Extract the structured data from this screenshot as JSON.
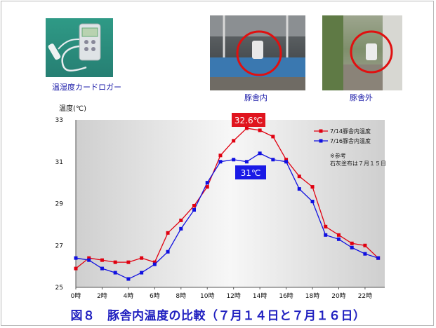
{
  "captions": {
    "logger": "温湿度カードロガー",
    "inside": "豚舎内",
    "outside": "豚舎外",
    "figure": "図８　豚舎内温度の比較（７月１４日と７月１６日）"
  },
  "colors": {
    "series_a": "#e00010",
    "series_b": "#1010e0",
    "callout_a_bg": "#e0141e",
    "callout_b_bg": "#1a1ae6",
    "caption_text": "#1a1aa8"
  },
  "photos": {
    "logger_icon": "temperature-humidity-logger-photo",
    "inside_icon": "pig-barn-interior-photo",
    "outside_icon": "pig-barn-exterior-photo"
  },
  "chart_data": {
    "type": "line",
    "ylabel": "温度(℃)",
    "ylim": [
      25,
      33
    ],
    "yticks": [
      25,
      27,
      29,
      31,
      33
    ],
    "xlim": [
      0,
      23.5
    ],
    "xticks": [
      0,
      2,
      4,
      6,
      8,
      10,
      12,
      14,
      16,
      18,
      20,
      22
    ],
    "xtick_labels": [
      "0時",
      "2時",
      "4時",
      "6時",
      "8時",
      "10時",
      "12時",
      "14時",
      "16時",
      "18時",
      "20時",
      "22時"
    ],
    "x": [
      0,
      1,
      2,
      3,
      4,
      5,
      6,
      7,
      8,
      9,
      10,
      11,
      12,
      13,
      14,
      15,
      16,
      17,
      18,
      19,
      20,
      21,
      22,
      23
    ],
    "series": [
      {
        "name": "7/14豚舎内温度",
        "values": [
          25.9,
          26.4,
          26.3,
          26.2,
          26.2,
          26.4,
          26.2,
          27.6,
          28.2,
          28.9,
          29.8,
          31.3,
          32.0,
          32.6,
          32.5,
          32.2,
          31.1,
          30.3,
          29.8,
          27.9,
          27.5,
          27.1,
          27.0,
          26.4
        ]
      },
      {
        "name": "7/16豚舎内温度",
        "values": [
          26.4,
          26.3,
          25.9,
          25.7,
          25.4,
          25.7,
          26.1,
          26.7,
          27.8,
          28.7,
          30.0,
          31.0,
          31.1,
          31.0,
          31.4,
          31.1,
          31.0,
          29.7,
          29.1,
          27.5,
          27.3,
          26.9,
          26.6,
          26.4
        ]
      }
    ],
    "annotations": {
      "peak_a": "32.6℃",
      "peak_b": "31℃",
      "note_line1": "※参考",
      "note_line2": "石灰塗布は７月１５日"
    },
    "legend_position": "top-right",
    "grid": false
  }
}
